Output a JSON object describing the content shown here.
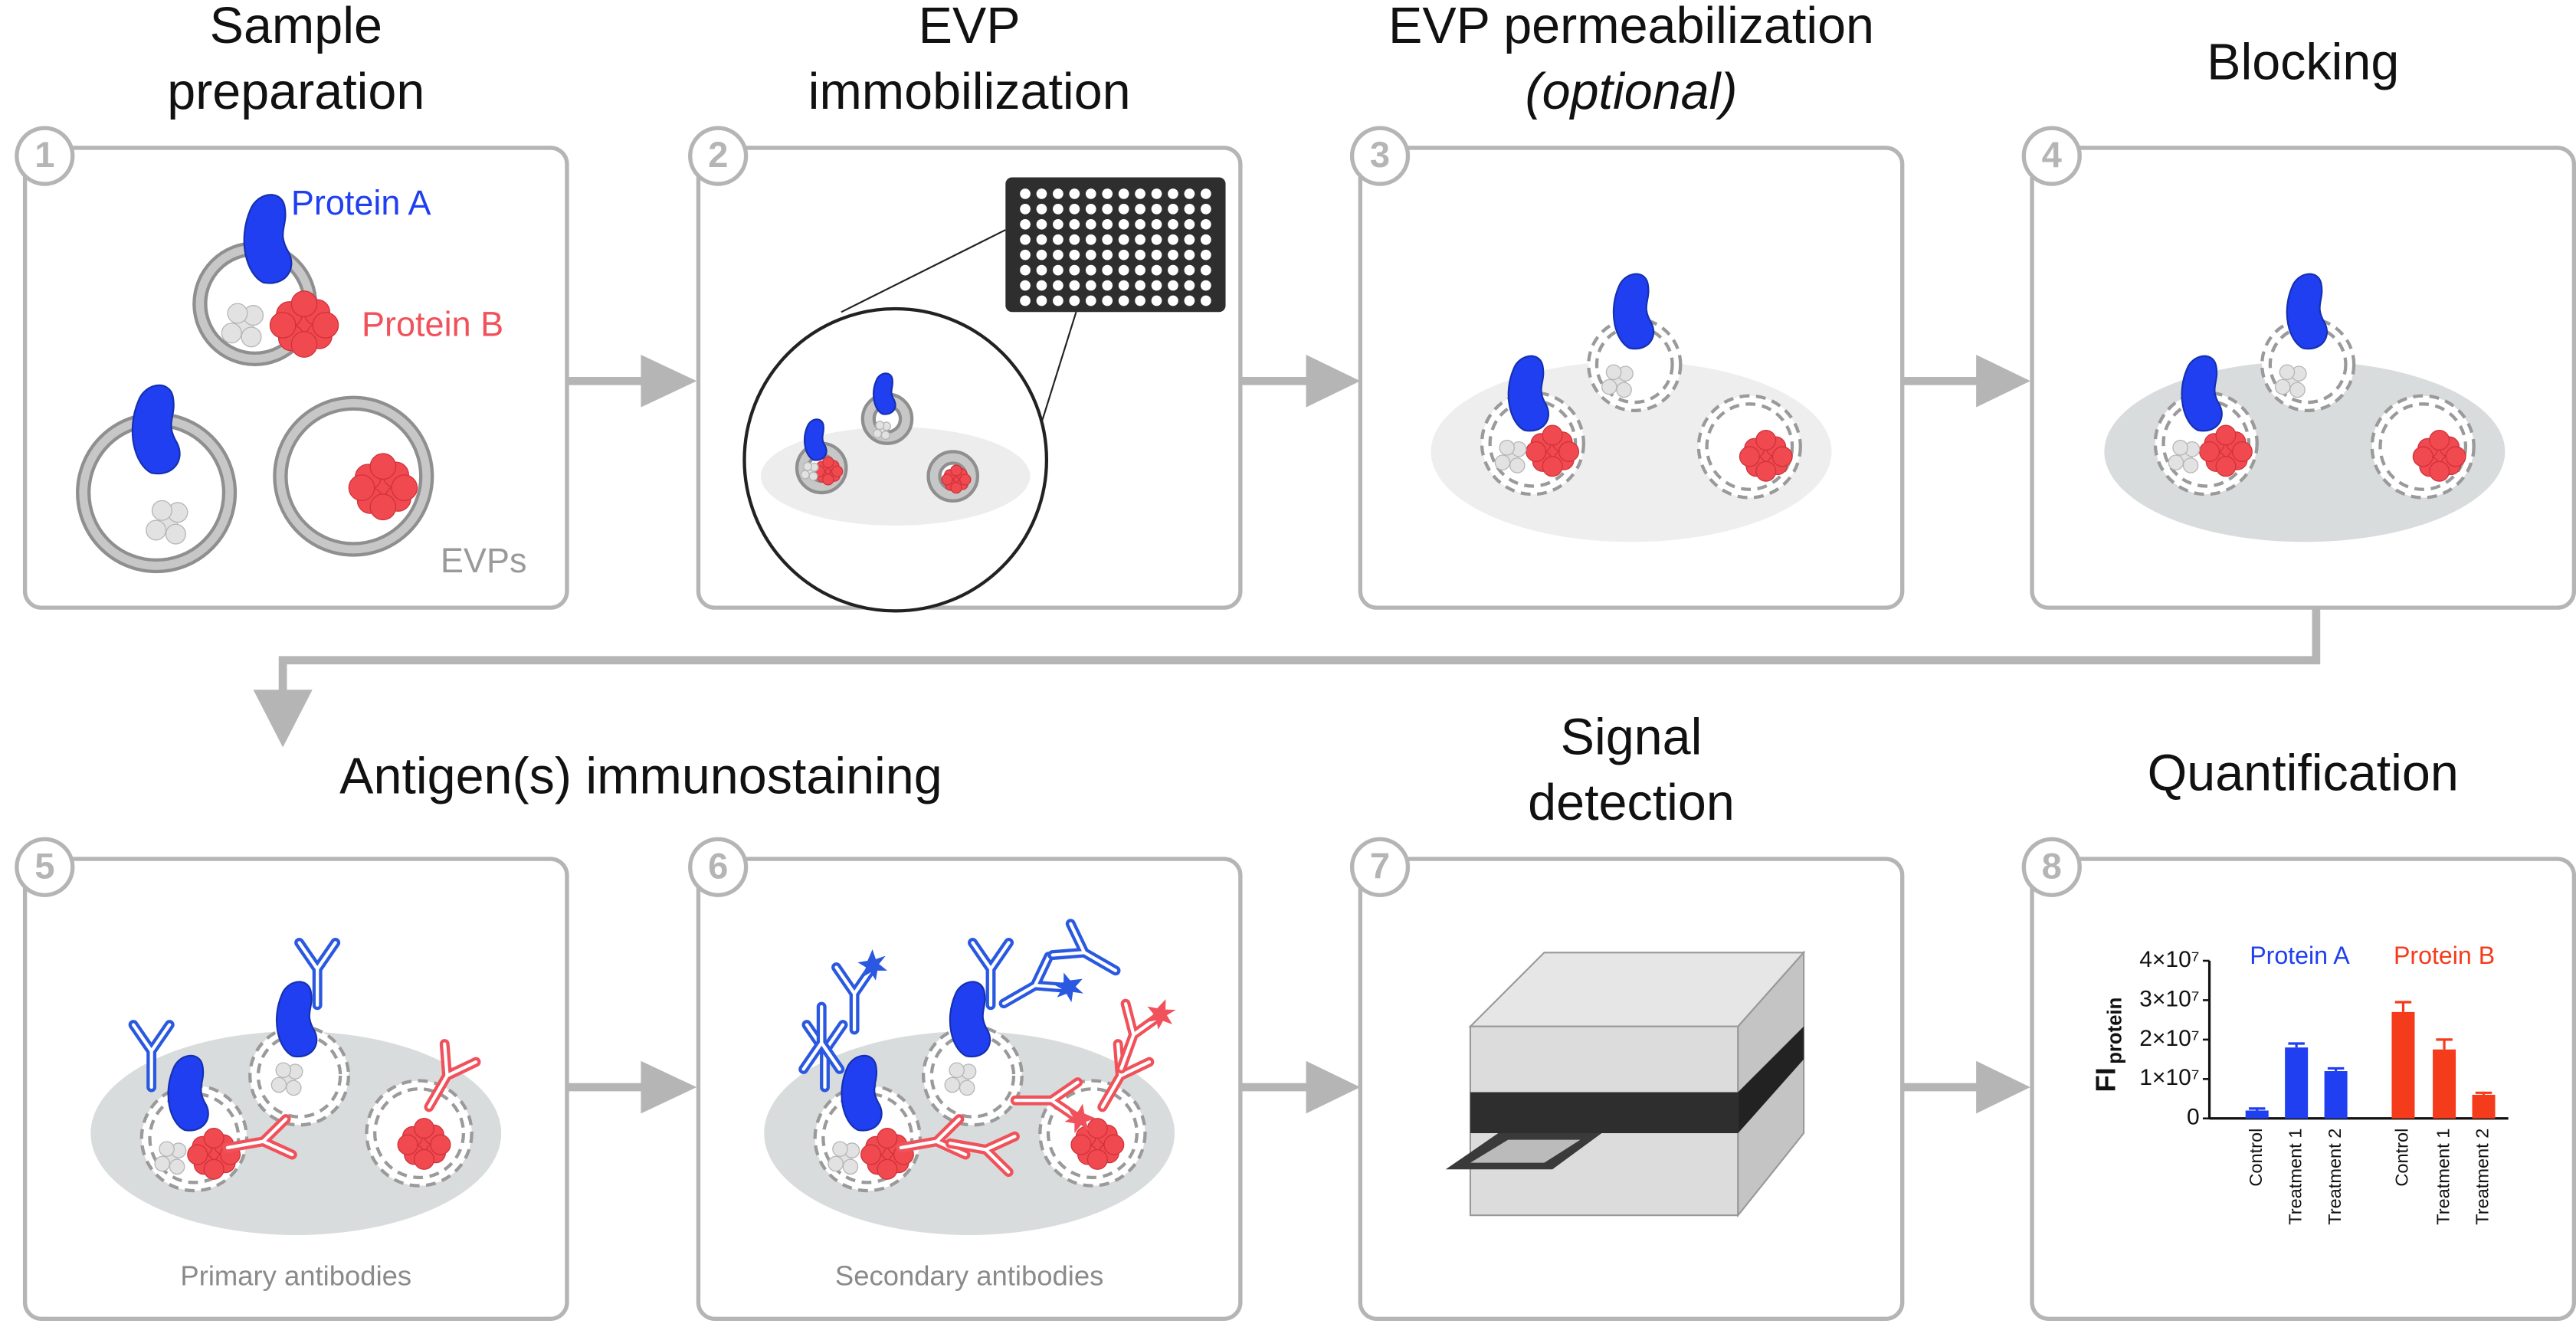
{
  "steps": [
    {
      "number": "1",
      "title": [
        "Sample",
        "preparation"
      ],
      "labels": {
        "protein_a": "Protein A",
        "protein_b": "Protein B",
        "evps": "EVPs"
      }
    },
    {
      "number": "2",
      "title": [
        "EVP",
        "immobilization"
      ]
    },
    {
      "number": "3",
      "title": [
        "EVP permeabilization",
        "(optional)"
      ]
    },
    {
      "number": "4",
      "title": [
        "Blocking"
      ]
    },
    {
      "number": "5",
      "caption": "Primary antibodies"
    },
    {
      "number": "6",
      "caption": "Secondary antibodies"
    },
    {
      "number": "7",
      "title": [
        "Signal",
        "detection"
      ]
    },
    {
      "number": "8",
      "title": [
        "Quantification"
      ]
    }
  ],
  "group_title": "Antigen(s) immunostaining",
  "quantification_chart": {
    "type": "bar",
    "ylabel": "FI",
    "ylabel_subscript": "protein",
    "categories": [
      "Control",
      "Treatment 1",
      "Treatment 2"
    ],
    "series": [
      {
        "name": "Protein A",
        "color": "#1f3ff0",
        "values": [
          2000000,
          18000000,
          12000000
        ],
        "errors": [
          500000,
          1000000,
          700000
        ]
      },
      {
        "name": "Protein B",
        "color": "#f43b1c",
        "values": [
          27000000,
          17500000,
          6000000
        ],
        "errors": [
          2500000,
          2500000,
          500000
        ]
      }
    ],
    "ylim": [
      0,
      40000000
    ],
    "yticks": [
      0,
      {
        "value": 10000000,
        "label": "1×10⁷"
      },
      {
        "value": 20000000,
        "label": "2×10⁷"
      },
      {
        "value": 30000000,
        "label": "3×10⁷"
      },
      {
        "value": 40000000,
        "label": "4×10⁷"
      }
    ]
  }
}
